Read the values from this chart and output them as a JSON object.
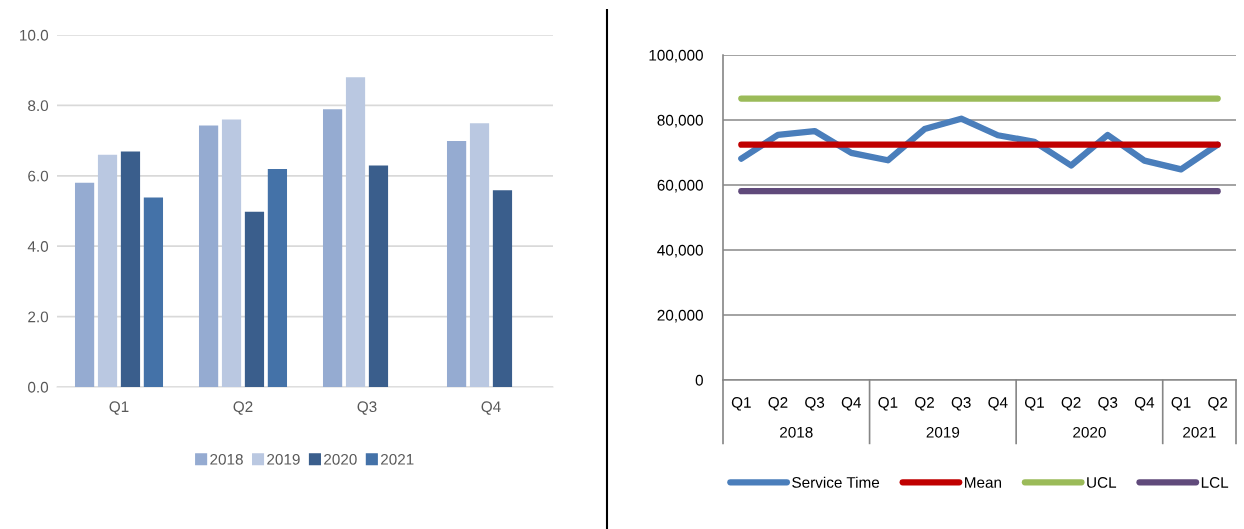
{
  "chart_data": [
    {
      "type": "bar",
      "categories": [
        "Q1",
        "Q2",
        "Q3",
        "Q4"
      ],
      "ylim": [
        0,
        10
      ],
      "yticks": [
        {
          "value": 0,
          "label": "0.0"
        },
        {
          "value": 2,
          "label": "2.0"
        },
        {
          "value": 4,
          "label": "4.0"
        },
        {
          "value": 6,
          "label": "6.0"
        },
        {
          "value": 8,
          "label": "8.0"
        },
        {
          "value": 10,
          "label": "10.0"
        }
      ],
      "grid": "y",
      "legend": "bottom",
      "series": [
        {
          "name": "2018",
          "color": "#95abd1",
          "values": [
            5.8,
            7.43,
            7.89,
            6.99
          ]
        },
        {
          "name": "2019",
          "color": "#bac8e1",
          "values": [
            6.6,
            7.6,
            8.8,
            7.49
          ]
        },
        {
          "name": "2020",
          "color": "#3a5e8c",
          "values": [
            6.69,
            4.98,
            6.29,
            5.59
          ]
        },
        {
          "name": "2021",
          "color": "#4472a8",
          "values": [
            5.38,
            6.19,
            null,
            null
          ]
        }
      ]
    },
    {
      "type": "line",
      "categories": [
        "Q1",
        "Q2",
        "Q3",
        "Q4",
        "Q1",
        "Q2",
        "Q3",
        "Q4",
        "Q1",
        "Q2",
        "Q3",
        "Q4",
        "Q1",
        "Q2"
      ],
      "annotations": [
        "2018",
        "2019",
        "2020",
        "2021"
      ],
      "ylim": [
        0,
        100000
      ],
      "yticks": [
        {
          "value": 0,
          "label": "0"
        },
        {
          "value": 20000,
          "label": "20,000"
        },
        {
          "value": 40000,
          "label": "40,000"
        },
        {
          "value": 60000,
          "label": "60,000"
        },
        {
          "value": 80000,
          "label": "80,000"
        },
        {
          "value": 100000,
          "label": "100,000"
        }
      ],
      "grid": "y",
      "legend": "bottom",
      "marker": "none",
      "line_style": "solid",
      "series": [
        {
          "name": "Service Time",
          "color": "#4a7ebb",
          "values": [
            68100,
            75400,
            76600,
            69900,
            67600,
            77200,
            80400,
            75300,
            73300,
            66000,
            75400,
            67500,
            64800,
            72400
          ]
        },
        {
          "name": "Mean",
          "color": "#c00000",
          "values": [
            72400,
            72400,
            72400,
            72400,
            72400,
            72400,
            72400,
            72400,
            72400,
            72400,
            72400,
            72400,
            72400,
            72400
          ]
        },
        {
          "name": "UCL",
          "color": "#9bbb59",
          "values": [
            86600,
            86600,
            86600,
            86600,
            86600,
            86600,
            86600,
            86600,
            86600,
            86600,
            86600,
            86600,
            86600,
            86600
          ]
        },
        {
          "name": "LCL",
          "color": "#604a7b",
          "values": [
            58100,
            58100,
            58100,
            58100,
            58100,
            58100,
            58100,
            58100,
            58100,
            58100,
            58100,
            58100,
            58100,
            58100
          ]
        }
      ]
    }
  ]
}
